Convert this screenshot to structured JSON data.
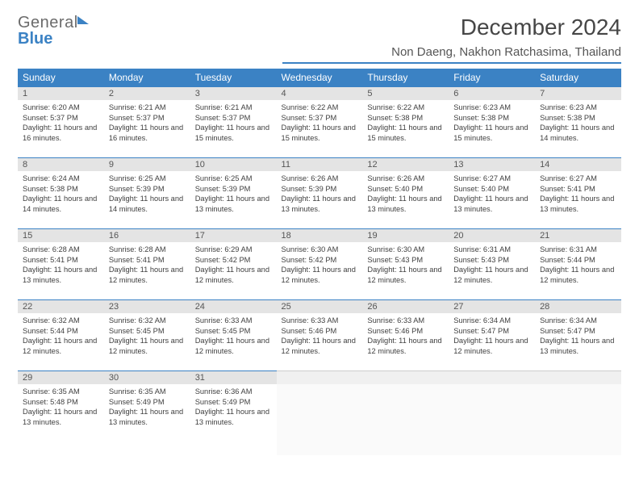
{
  "brand": {
    "line1": "General",
    "line2": "Blue"
  },
  "title": "December 2024",
  "location": "Non Daeng, Nakhon Ratchasima, Thailand",
  "colors": {
    "accent": "#3b82c4",
    "header_bg": "#3b82c4",
    "daynum_bg": "#e4e4e4"
  },
  "weekdays": [
    "Sunday",
    "Monday",
    "Tuesday",
    "Wednesday",
    "Thursday",
    "Friday",
    "Saturday"
  ],
  "weeks": [
    [
      {
        "n": "1",
        "sr": "Sunrise: 6:20 AM",
        "ss": "Sunset: 5:37 PM",
        "dl": "Daylight: 11 hours and 16 minutes."
      },
      {
        "n": "2",
        "sr": "Sunrise: 6:21 AM",
        "ss": "Sunset: 5:37 PM",
        "dl": "Daylight: 11 hours and 16 minutes."
      },
      {
        "n": "3",
        "sr": "Sunrise: 6:21 AM",
        "ss": "Sunset: 5:37 PM",
        "dl": "Daylight: 11 hours and 15 minutes."
      },
      {
        "n": "4",
        "sr": "Sunrise: 6:22 AM",
        "ss": "Sunset: 5:37 PM",
        "dl": "Daylight: 11 hours and 15 minutes."
      },
      {
        "n": "5",
        "sr": "Sunrise: 6:22 AM",
        "ss": "Sunset: 5:38 PM",
        "dl": "Daylight: 11 hours and 15 minutes."
      },
      {
        "n": "6",
        "sr": "Sunrise: 6:23 AM",
        "ss": "Sunset: 5:38 PM",
        "dl": "Daylight: 11 hours and 15 minutes."
      },
      {
        "n": "7",
        "sr": "Sunrise: 6:23 AM",
        "ss": "Sunset: 5:38 PM",
        "dl": "Daylight: 11 hours and 14 minutes."
      }
    ],
    [
      {
        "n": "8",
        "sr": "Sunrise: 6:24 AM",
        "ss": "Sunset: 5:38 PM",
        "dl": "Daylight: 11 hours and 14 minutes."
      },
      {
        "n": "9",
        "sr": "Sunrise: 6:25 AM",
        "ss": "Sunset: 5:39 PM",
        "dl": "Daylight: 11 hours and 14 minutes."
      },
      {
        "n": "10",
        "sr": "Sunrise: 6:25 AM",
        "ss": "Sunset: 5:39 PM",
        "dl": "Daylight: 11 hours and 13 minutes."
      },
      {
        "n": "11",
        "sr": "Sunrise: 6:26 AM",
        "ss": "Sunset: 5:39 PM",
        "dl": "Daylight: 11 hours and 13 minutes."
      },
      {
        "n": "12",
        "sr": "Sunrise: 6:26 AM",
        "ss": "Sunset: 5:40 PM",
        "dl": "Daylight: 11 hours and 13 minutes."
      },
      {
        "n": "13",
        "sr": "Sunrise: 6:27 AM",
        "ss": "Sunset: 5:40 PM",
        "dl": "Daylight: 11 hours and 13 minutes."
      },
      {
        "n": "14",
        "sr": "Sunrise: 6:27 AM",
        "ss": "Sunset: 5:41 PM",
        "dl": "Daylight: 11 hours and 13 minutes."
      }
    ],
    [
      {
        "n": "15",
        "sr": "Sunrise: 6:28 AM",
        "ss": "Sunset: 5:41 PM",
        "dl": "Daylight: 11 hours and 13 minutes."
      },
      {
        "n": "16",
        "sr": "Sunrise: 6:28 AM",
        "ss": "Sunset: 5:41 PM",
        "dl": "Daylight: 11 hours and 12 minutes."
      },
      {
        "n": "17",
        "sr": "Sunrise: 6:29 AM",
        "ss": "Sunset: 5:42 PM",
        "dl": "Daylight: 11 hours and 12 minutes."
      },
      {
        "n": "18",
        "sr": "Sunrise: 6:30 AM",
        "ss": "Sunset: 5:42 PM",
        "dl": "Daylight: 11 hours and 12 minutes."
      },
      {
        "n": "19",
        "sr": "Sunrise: 6:30 AM",
        "ss": "Sunset: 5:43 PM",
        "dl": "Daylight: 11 hours and 12 minutes."
      },
      {
        "n": "20",
        "sr": "Sunrise: 6:31 AM",
        "ss": "Sunset: 5:43 PM",
        "dl": "Daylight: 11 hours and 12 minutes."
      },
      {
        "n": "21",
        "sr": "Sunrise: 6:31 AM",
        "ss": "Sunset: 5:44 PM",
        "dl": "Daylight: 11 hours and 12 minutes."
      }
    ],
    [
      {
        "n": "22",
        "sr": "Sunrise: 6:32 AM",
        "ss": "Sunset: 5:44 PM",
        "dl": "Daylight: 11 hours and 12 minutes."
      },
      {
        "n": "23",
        "sr": "Sunrise: 6:32 AM",
        "ss": "Sunset: 5:45 PM",
        "dl": "Daylight: 11 hours and 12 minutes."
      },
      {
        "n": "24",
        "sr": "Sunrise: 6:33 AM",
        "ss": "Sunset: 5:45 PM",
        "dl": "Daylight: 11 hours and 12 minutes."
      },
      {
        "n": "25",
        "sr": "Sunrise: 6:33 AM",
        "ss": "Sunset: 5:46 PM",
        "dl": "Daylight: 11 hours and 12 minutes."
      },
      {
        "n": "26",
        "sr": "Sunrise: 6:33 AM",
        "ss": "Sunset: 5:46 PM",
        "dl": "Daylight: 11 hours and 12 minutes."
      },
      {
        "n": "27",
        "sr": "Sunrise: 6:34 AM",
        "ss": "Sunset: 5:47 PM",
        "dl": "Daylight: 11 hours and 12 minutes."
      },
      {
        "n": "28",
        "sr": "Sunrise: 6:34 AM",
        "ss": "Sunset: 5:47 PM",
        "dl": "Daylight: 11 hours and 13 minutes."
      }
    ],
    [
      {
        "n": "29",
        "sr": "Sunrise: 6:35 AM",
        "ss": "Sunset: 5:48 PM",
        "dl": "Daylight: 11 hours and 13 minutes."
      },
      {
        "n": "30",
        "sr": "Sunrise: 6:35 AM",
        "ss": "Sunset: 5:49 PM",
        "dl": "Daylight: 11 hours and 13 minutes."
      },
      {
        "n": "31",
        "sr": "Sunrise: 6:36 AM",
        "ss": "Sunset: 5:49 PM",
        "dl": "Daylight: 11 hours and 13 minutes."
      },
      null,
      null,
      null,
      null
    ]
  ]
}
